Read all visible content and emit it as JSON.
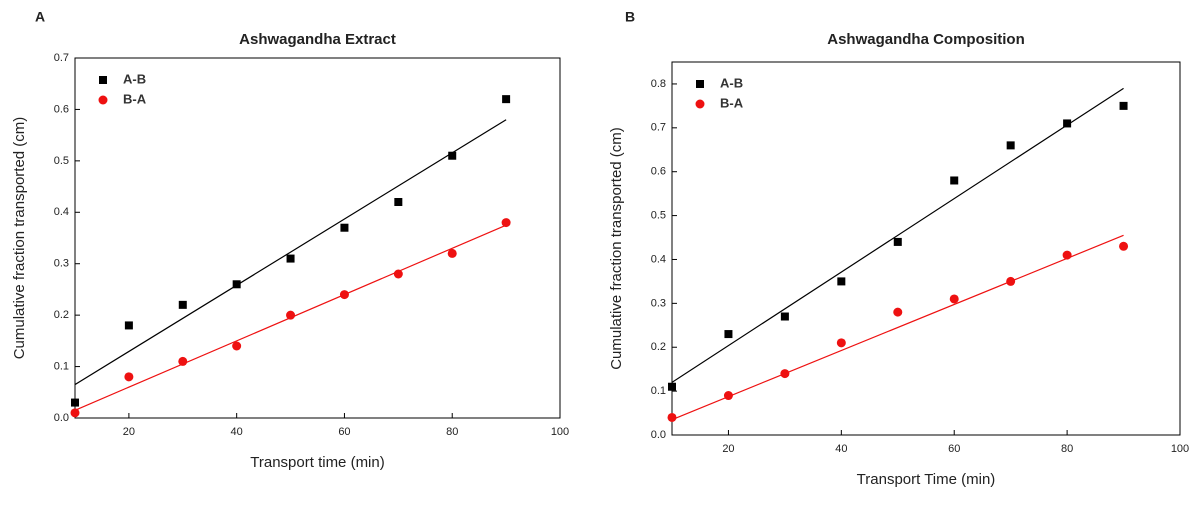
{
  "chart_data": [
    {
      "type": "scatter",
      "panel_label": "A",
      "title": "Ashwagandha Extract",
      "x_label": "Transport time (min)",
      "y_label": "Cumulative fraction transported (cm)",
      "x": [
        10,
        20,
        30,
        40,
        50,
        60,
        70,
        80,
        90
      ],
      "series": [
        {
          "name": "A-B",
          "color": "#000000",
          "marker": "square",
          "values": [
            0.03,
            0.18,
            0.22,
            0.26,
            0.31,
            0.37,
            0.42,
            0.51,
            0.62
          ]
        },
        {
          "name": "B-A",
          "color": "#ee1111",
          "marker": "circle",
          "values": [
            0.01,
            0.08,
            0.11,
            0.14,
            0.2,
            0.24,
            0.28,
            0.32,
            0.38
          ]
        }
      ],
      "fit_lines": [
        {
          "color": "#000000",
          "x": [
            10,
            90
          ],
          "values": [
            0.065,
            0.58
          ]
        },
        {
          "color": "#ee1111",
          "x": [
            10,
            90
          ],
          "values": [
            0.015,
            0.375
          ]
        }
      ],
      "xlim": [
        10,
        100
      ],
      "xticks": [
        20,
        40,
        60,
        80,
        100
      ],
      "ylim": [
        0,
        0.7
      ],
      "yticks": [
        {
          "value": 0,
          "label": "0.0"
        },
        0.1,
        0.2,
        0.3,
        0.4,
        0.5,
        0.6,
        0.7
      ],
      "legend": "upper left"
    },
    {
      "type": "scatter",
      "panel_label": "B",
      "title": "Ashwagandha Composition",
      "x_label": "Transport Time (min)",
      "y_label": "Cumulative fraction transported (cm)",
      "x": [
        10,
        20,
        30,
        40,
        50,
        60,
        70,
        80,
        90
      ],
      "series": [
        {
          "name": "A-B",
          "color": "#000000",
          "marker": "square",
          "values": [
            0.11,
            0.23,
            0.27,
            0.35,
            0.44,
            0.58,
            0.66,
            0.71,
            0.75
          ]
        },
        {
          "name": "B-A",
          "color": "#ee1111",
          "marker": "circle",
          "values": [
            0.04,
            0.09,
            0.14,
            0.21,
            0.28,
            0.31,
            0.35,
            0.41,
            0.43
          ]
        }
      ],
      "fit_lines": [
        {
          "color": "#000000",
          "x": [
            10,
            90
          ],
          "values": [
            0.12,
            0.79
          ]
        },
        {
          "color": "#ee1111",
          "x": [
            10,
            90
          ],
          "values": [
            0.035,
            0.455
          ]
        }
      ],
      "xlim": [
        10,
        100
      ],
      "xticks": [
        20,
        40,
        60,
        80,
        100
      ],
      "ylim": [
        0,
        0.85
      ],
      "yticks": [
        {
          "value": 0,
          "label": "0.0"
        },
        0.1,
        0.2,
        0.3,
        0.4,
        0.5,
        0.6,
        0.7,
        0.8
      ],
      "legend": "upper left"
    }
  ]
}
